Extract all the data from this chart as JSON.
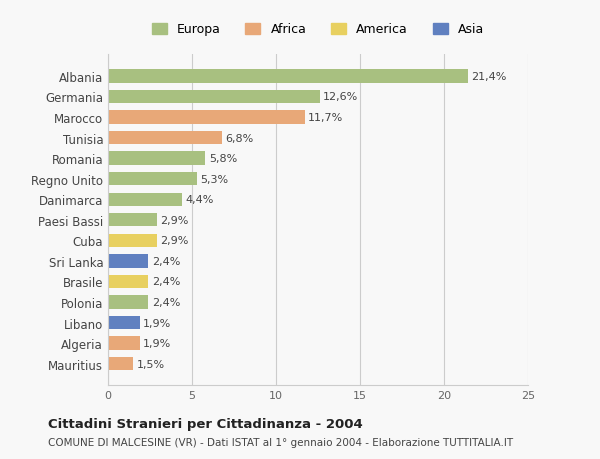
{
  "countries": [
    "Albania",
    "Germania",
    "Marocco",
    "Tunisia",
    "Romania",
    "Regno Unito",
    "Danimarca",
    "Paesi Bassi",
    "Cuba",
    "Sri Lanka",
    "Brasile",
    "Polonia",
    "Libano",
    "Algeria",
    "Mauritius"
  ],
  "values": [
    21.4,
    12.6,
    11.7,
    6.8,
    5.8,
    5.3,
    4.4,
    2.9,
    2.9,
    2.4,
    2.4,
    2.4,
    1.9,
    1.9,
    1.5
  ],
  "labels": [
    "21,4%",
    "12,6%",
    "11,7%",
    "6,8%",
    "5,8%",
    "5,3%",
    "4,4%",
    "2,9%",
    "2,9%",
    "2,4%",
    "2,4%",
    "2,4%",
    "1,9%",
    "1,9%",
    "1,5%"
  ],
  "continents": [
    "Europa",
    "Europa",
    "Africa",
    "Africa",
    "Europa",
    "Europa",
    "Europa",
    "Europa",
    "America",
    "Asia",
    "America",
    "Europa",
    "Asia",
    "Africa",
    "Africa"
  ],
  "colors": {
    "Europa": "#a8c080",
    "Africa": "#e8a878",
    "America": "#e8d060",
    "Asia": "#6080c0"
  },
  "legend_order": [
    "Europa",
    "Africa",
    "America",
    "Asia"
  ],
  "xlim": [
    0,
    25
  ],
  "xticks": [
    0,
    5,
    10,
    15,
    20,
    25
  ],
  "title": "Cittadini Stranieri per Cittadinanza - 2004",
  "subtitle": "COMUNE DI MALCESINE (VR) - Dati ISTAT al 1° gennaio 2004 - Elaborazione TUTTITALIA.IT",
  "background_color": "#f8f8f8",
  "grid_color": "#cccccc",
  "bar_height": 0.65
}
